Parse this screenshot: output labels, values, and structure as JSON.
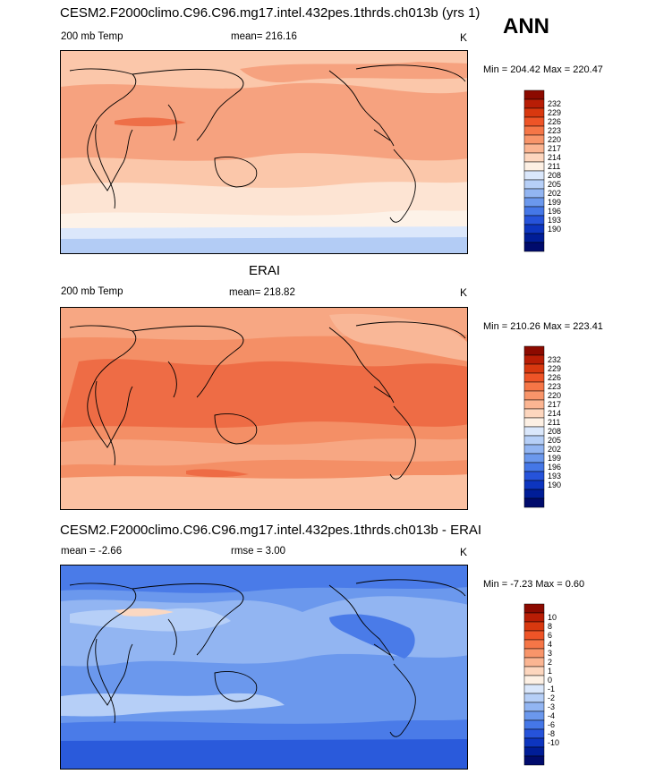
{
  "season": "ANN",
  "panels": [
    {
      "title": "CESM2.F2000climo.C96.C96.mg17.intel.432pes.1thrds.ch013b (yrs 1)",
      "left_label": "200 mb Temp",
      "center_label": "mean= 216.16",
      "units": "K",
      "minmax": "Min = 204.42 Max = 220.47",
      "palette": [
        "#fde6d8",
        "#fccbb0",
        "#f9ad8a",
        "#f58e66",
        "#ef6a43",
        "#e1431f",
        "#c0250f",
        "#8f0a05"
      ],
      "base": "#fcd0b6",
      "colorbar": {
        "labels": [
          "232",
          "229",
          "226",
          "223",
          "220",
          "217",
          "214",
          "211",
          "208",
          "205",
          "202",
          "199",
          "196",
          "193",
          "190"
        ],
        "colors": [
          "#8c0a00",
          "#b81d05",
          "#d8380f",
          "#ee5427",
          "#f57647",
          "#f8956a",
          "#fbb592",
          "#fdd6be",
          "#fdf0e4",
          "#dae7fb",
          "#b6cff7",
          "#92b5f2",
          "#6b98ed",
          "#4577e7",
          "#2653da",
          "#0d35bf",
          "#001d97",
          "#000b6c"
        ]
      }
    },
    {
      "title": "ERAI",
      "left_label": "200 mb Temp",
      "center_label": "mean= 218.82",
      "units": "K",
      "minmax": "Min = 210.26 Max = 223.41",
      "palette": [
        "#fccbb0",
        "#f9ad8a",
        "#f58e66",
        "#ef6a43",
        "#e1431f",
        "#c0250f",
        "#8f0a05"
      ],
      "base": "#f59a74",
      "colorbar": {
        "labels": [
          "232",
          "229",
          "226",
          "223",
          "220",
          "217",
          "214",
          "211",
          "208",
          "205",
          "202",
          "199",
          "196",
          "193",
          "190"
        ],
        "colors": [
          "#8c0a00",
          "#b81d05",
          "#d8380f",
          "#ee5427",
          "#f57647",
          "#f8956a",
          "#fbb592",
          "#fdd6be",
          "#fdf0e4",
          "#dae7fb",
          "#b6cff7",
          "#92b5f2",
          "#6b98ed",
          "#4577e7",
          "#2653da",
          "#0d35bf",
          "#001d97",
          "#000b6c"
        ]
      }
    },
    {
      "title": "CESM2.F2000climo.C96.C96.mg17.intel.432pes.1thrds.ch013b - ERAI",
      "left_label": "mean =  -2.66",
      "center_label": "rmse =   3.00",
      "units": "K",
      "minmax": "Min =  -7.23 Max =   0.60",
      "base": "#5c8ff0",
      "colorbar": {
        "labels": [
          "10",
          "8",
          "6",
          "4",
          "3",
          "2",
          "1",
          "0",
          "-1",
          "-2",
          "-3",
          "-4",
          "-6",
          "-8",
          "-10"
        ],
        "colors": [
          "#8c0a00",
          "#b81d05",
          "#d8380f",
          "#ee5427",
          "#f57647",
          "#f8956a",
          "#fbb592",
          "#fdd6be",
          "#fdf0e4",
          "#dae7fb",
          "#b6cff7",
          "#92b5f2",
          "#6b98ed",
          "#4577e7",
          "#2653da",
          "#0d35bf",
          "#001d97",
          "#000b6c"
        ]
      }
    }
  ]
}
